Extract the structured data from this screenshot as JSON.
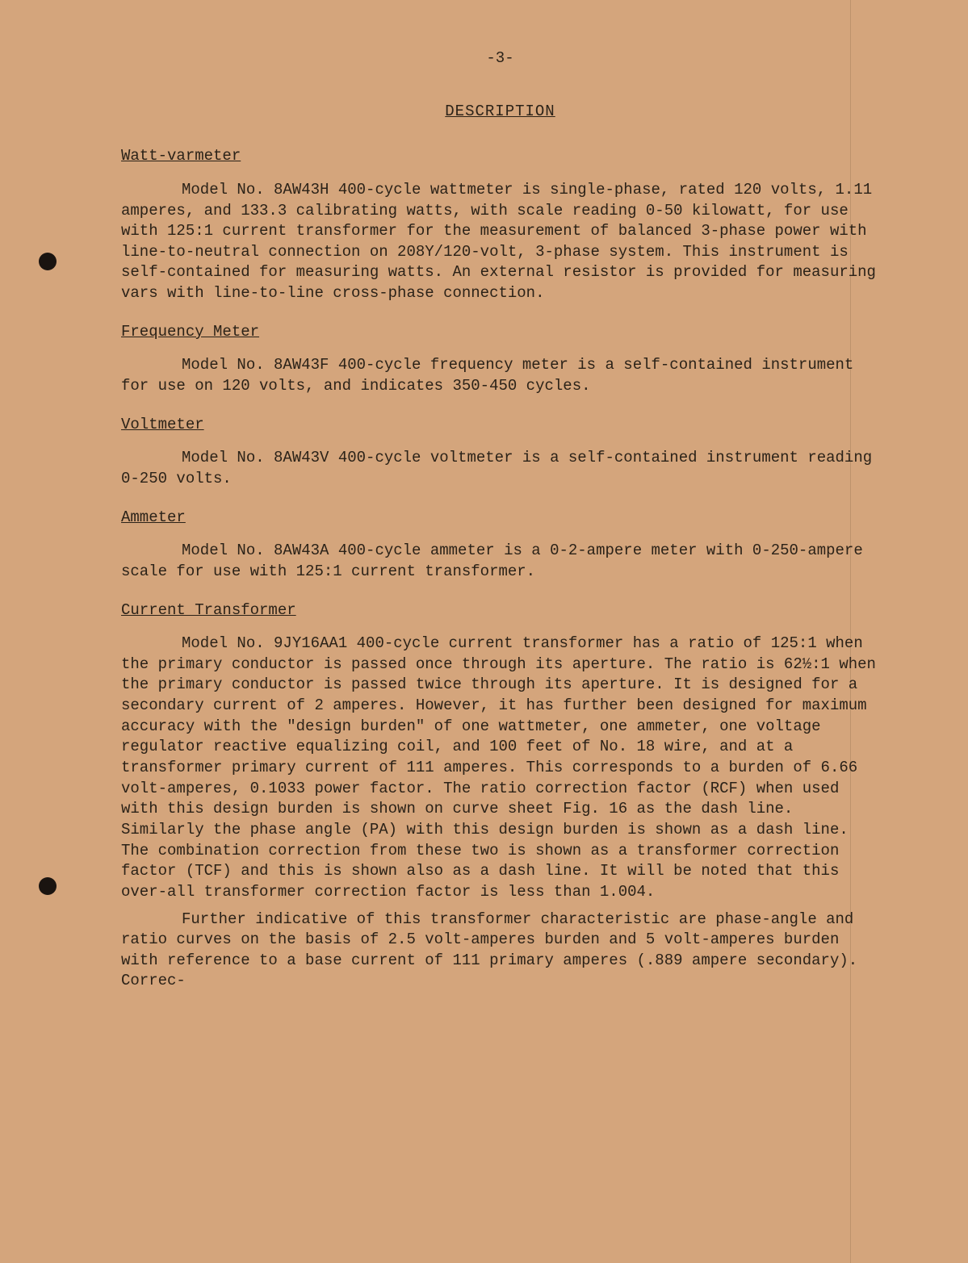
{
  "page": {
    "number": "-3-",
    "title": "DESCRIPTION",
    "background_color": "#d4a57c",
    "text_color": "#2b2218",
    "font_family": "Courier New",
    "font_size_pt": 14
  },
  "sections": [
    {
      "heading": "Watt-varmeter",
      "paragraphs": [
        "Model No. 8AW43H 400-cycle wattmeter is single-phase, rated 120 volts, 1.11 amperes, and 133.3 calibrating watts, with scale reading 0-50 kilowatt, for use with 125:1 current transformer for the measurement of balanced 3-phase power with line-to-neutral connection on 208Y/120-volt, 3-phase system. This instrument is self-contained for measuring watts.  An external resistor is provided for measuring vars with line-to-line cross-phase connection."
      ]
    },
    {
      "heading": "Frequency Meter",
      "paragraphs": [
        "Model No. 8AW43F 400-cycle frequency meter is a self-contained instrument for use on 120 volts, and indicates 350-450 cycles."
      ]
    },
    {
      "heading": "Voltmeter",
      "paragraphs": [
        "Model No. 8AW43V 400-cycle voltmeter is a self-contained instrument reading 0-250 volts."
      ]
    },
    {
      "heading": "Ammeter",
      "paragraphs": [
        "Model No. 8AW43A 400-cycle ammeter is a 0-2-ampere meter with 0-250-ampere scale for use with 125:1 current transformer."
      ]
    },
    {
      "heading": "Current Transformer",
      "paragraphs": [
        "Model No. 9JY16AA1 400-cycle current transformer has a ratio of 125:1 when the primary conductor is passed once through its aperture.  The ratio is 62½:1 when the primary conductor is passed twice through its aperture.  It is designed for a secondary current of 2 amperes.  However, it has further been designed for maximum accuracy with the \"design burden\" of one wattmeter, one ammeter, one voltage regulator reactive equalizing coil, and 100 feet of No. 18 wire, and at a transformer primary current of 111 amperes.  This corresponds to a burden of 6.66 volt-amperes, 0.1033 power factor.  The ratio correction factor (RCF) when used with this design burden is shown on curve sheet Fig. 16 as the dash line.  Similarly the phase angle (PA) with this design burden is shown as a dash line.  The combination correction from these two is shown as a transformer correction factor (TCF) and this is shown also as a dash line.  It will be noted that this over-all transformer correction factor is less than 1.004.",
        "Further indicative of this transformer characteristic are phase-angle and ratio curves on the basis of 2.5 volt-amperes burden and 5 volt-amperes burden with reference to a base current of 111 primary amperes (.889 ampere secondary).  Correc-"
      ]
    }
  ]
}
